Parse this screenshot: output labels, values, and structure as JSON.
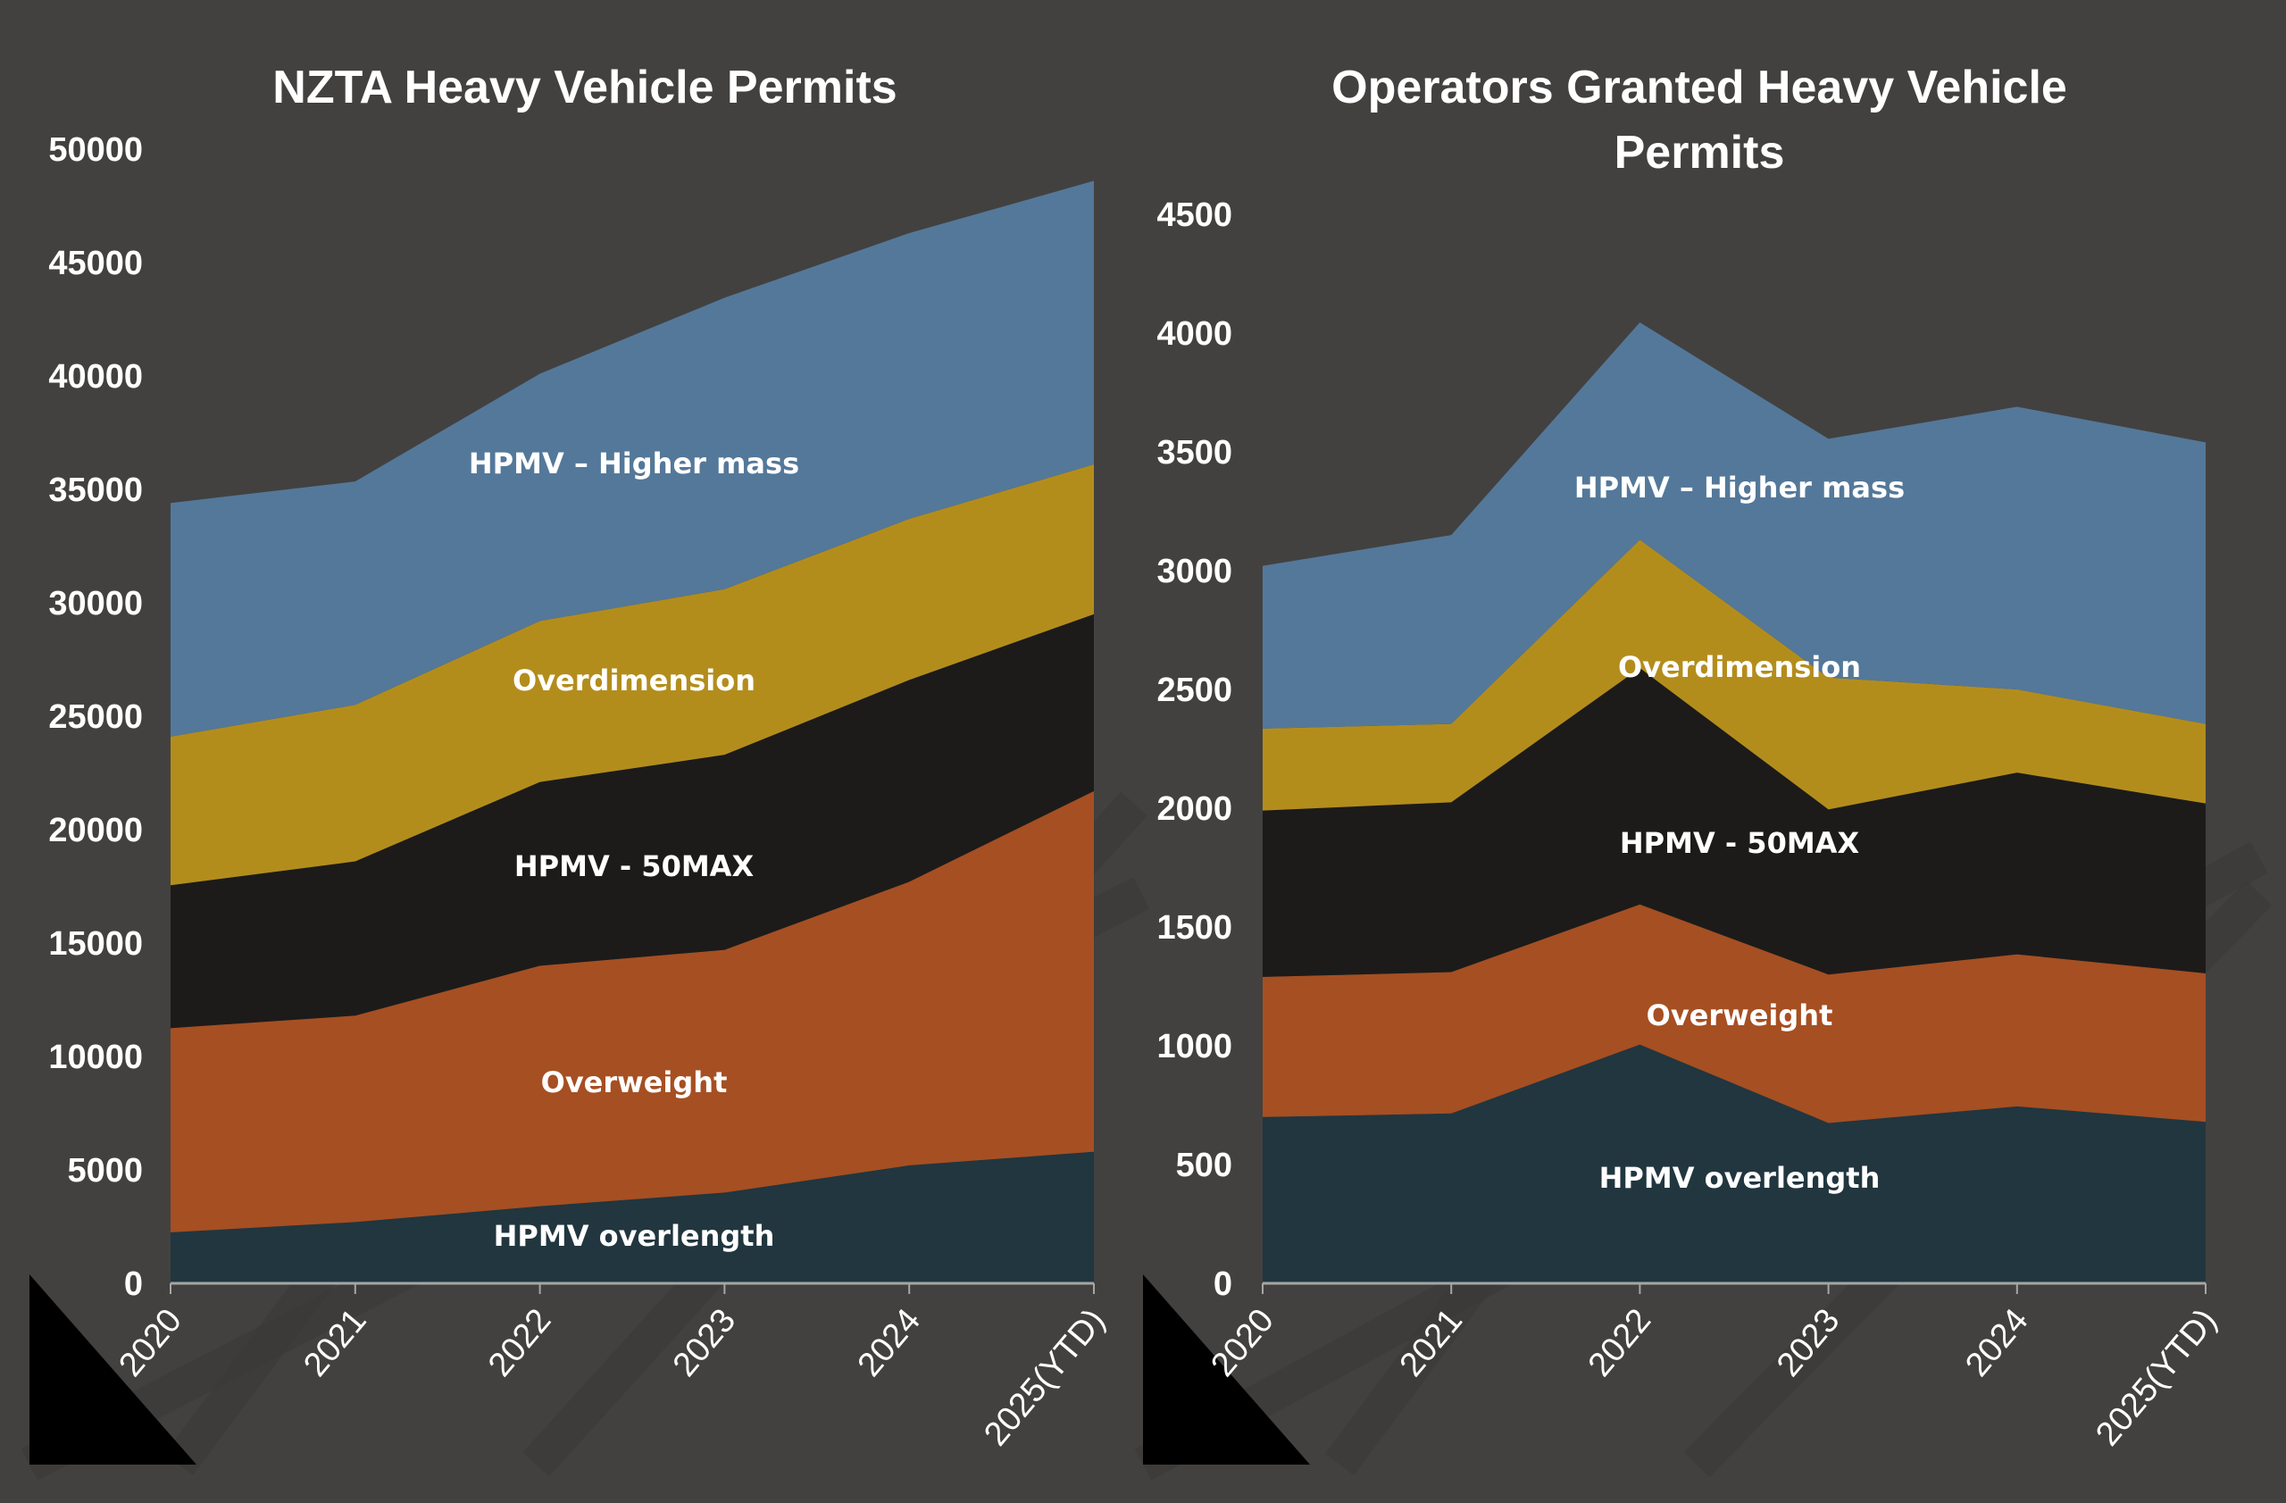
{
  "colors": {
    "background": "#424140",
    "axis": "#a6a6a6",
    "text": "#ffffff",
    "series": {
      "HPMV overlength": "#21363f",
      "Overweight": "#a64f22",
      "HPMV - 50MAX": "#1c1b1a",
      "Overdimension": "#b38d1c",
      "HPMV – Higher mass": "#547899"
    }
  },
  "chart_data": [
    {
      "type": "area",
      "stacked": true,
      "title": "NZTA Heavy Vehicle Permits",
      "xlabel": "",
      "ylabel": "",
      "categories": [
        "2020",
        "2021",
        "2022",
        "2023",
        "2024",
        "2025(YTD)"
      ],
      "ylim": [
        0,
        50000
      ],
      "yticks": [
        0,
        5000,
        10000,
        15000,
        20000,
        25000,
        30000,
        35000,
        40000,
        45000,
        50000
      ],
      "grid": false,
      "legend": "inline-labels",
      "series": [
        {
          "name": "HPMV overlength",
          "label": "HPMV overlength",
          "values": [
            2250,
            2700,
            3400,
            4000,
            5200,
            5800
          ]
        },
        {
          "name": "Overweight",
          "label": "Overweight",
          "values": [
            9000,
            9100,
            10600,
            10700,
            12500,
            15900
          ]
        },
        {
          "name": "HPMV - 50MAX",
          "label": "HPMV - 50MAX",
          "values": [
            6300,
            6800,
            8100,
            8600,
            8900,
            7800
          ]
        },
        {
          "name": "Overdimension",
          "label": "Overdimension",
          "values": [
            6550,
            6900,
            7100,
            7300,
            7100,
            6600
          ]
        },
        {
          "name": "HPMV – Higher mass",
          "label": "HPMV – Higher mass",
          "values": [
            10300,
            9850,
            10900,
            12850,
            12600,
            12500
          ]
        }
      ]
    },
    {
      "type": "area",
      "stacked": true,
      "title": "Operators Granted Heavy Vehicle Permits",
      "title_lines": [
        "Operators Granted Heavy Vehicle",
        "Permits"
      ],
      "xlabel": "",
      "ylabel": "",
      "categories": [
        "2020",
        "2021",
        "2022",
        "2023",
        "2024",
        "2025(YTD)"
      ],
      "ylim": [
        0,
        4500
      ],
      "yticks": [
        0,
        500,
        1000,
        1500,
        2000,
        2500,
        3000,
        3500,
        4000,
        4500
      ],
      "grid": false,
      "legend": "inline-labels",
      "series": [
        {
          "name": "HPMV overlength",
          "label": "HPMV overlength",
          "values": [
            700,
            715,
            1005,
            675,
            745,
            680
          ]
        },
        {
          "name": "Overweight",
          "label": "Overweight",
          "values": [
            590,
            595,
            590,
            625,
            640,
            625
          ]
        },
        {
          "name": "HPMV - 50MAX",
          "label": "HPMV - 50MAX",
          "values": [
            700,
            715,
            995,
            695,
            765,
            715
          ]
        },
        {
          "name": "Overdimension",
          "label": "Overdimension",
          "values": [
            345,
            330,
            540,
            555,
            350,
            335
          ]
        },
        {
          "name": "HPMV – Higher mass",
          "label": "HPMV – Higher mass",
          "values": [
            685,
            795,
            915,
            1005,
            1190,
            1185
          ]
        }
      ]
    }
  ]
}
